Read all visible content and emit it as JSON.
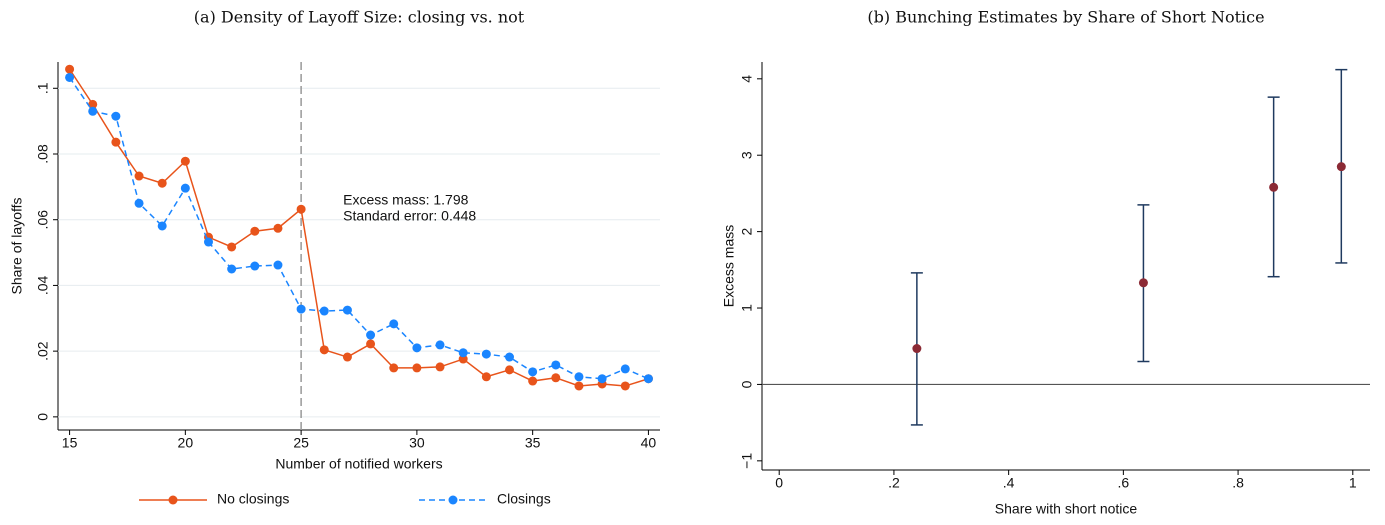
{
  "chart_data": [
    {
      "type": "line",
      "title": "(a) Density of Layoff Size: closing vs. not",
      "x_label": "Number of notified workers",
      "y_label": "Share of layoffs",
      "x": [
        15,
        16,
        17,
        18,
        19,
        20,
        21,
        22,
        23,
        24,
        25,
        26,
        27,
        28,
        29,
        30,
        31,
        32,
        33,
        34,
        35,
        36,
        37,
        38,
        39,
        40
      ],
      "series": [
        {
          "name": "No closings",
          "color": "#e8541b",
          "line_style": "solid",
          "values": [
            0.1058,
            0.0951,
            0.0836,
            0.0733,
            0.0711,
            0.0778,
            0.0547,
            0.0517,
            0.0565,
            0.0574,
            0.0632,
            0.0204,
            0.0182,
            0.0222,
            0.0149,
            0.0149,
            0.0152,
            0.0176,
            0.0122,
            0.0143,
            0.0109,
            0.0119,
            0.0094,
            0.01,
            0.0094,
            0.0116
          ]
        },
        {
          "name": "Closings",
          "color": "#1a85ff",
          "line_style": "dashed",
          "values": [
            0.1033,
            0.093,
            0.0915,
            0.065,
            0.0581,
            0.0696,
            0.0532,
            0.045,
            0.0459,
            0.0462,
            0.0328,
            0.0322,
            0.0325,
            0.0249,
            0.0283,
            0.021,
            0.0219,
            0.0195,
            0.0191,
            0.0182,
            0.0137,
            0.0158,
            0.0122,
            0.0116,
            0.0146,
            0.0116
          ]
        }
      ],
      "vline": 25,
      "annotation": [
        "Excess mass: 1.798",
        "Standard error: 0.448"
      ],
      "xlim": [
        14.5,
        40.5
      ],
      "xticks": [
        15,
        20,
        25,
        30,
        35,
        40
      ],
      "ylim": [
        -0.004,
        0.108
      ],
      "yticks": [
        0,
        {
          "value": 0.02,
          "label": ".02"
        },
        {
          "value": 0.04,
          "label": ".04"
        },
        {
          "value": 0.06,
          "label": ".06"
        },
        {
          "value": 0.08,
          "label": ".08"
        },
        {
          "value": 0.1,
          "label": ".1"
        }
      ],
      "grid": true,
      "legend": "bottom"
    },
    {
      "type": "errorbar",
      "title": "(b) Bunching Estimates by Share of Short Notice",
      "x_label": "Share with short notice",
      "y_label": "Excess mass",
      "x": [
        0.24,
        0.635,
        0.862,
        0.98
      ],
      "values": [
        0.47,
        1.33,
        2.58,
        2.85
      ],
      "lower": [
        -0.53,
        0.3,
        1.41,
        1.59
      ],
      "upper": [
        1.46,
        2.35,
        3.76,
        4.12
      ],
      "color": "#8b2a35",
      "bar_color": "#1f3a5f",
      "hline": 0,
      "xlim": [
        -0.03,
        1.03
      ],
      "xticks": [
        0,
        {
          "value": 0.2,
          "label": ".2"
        },
        {
          "value": 0.4,
          "label": ".4"
        },
        {
          "value": 0.6,
          "label": ".6"
        },
        {
          "value": 0.8,
          "label": ".8"
        },
        1
      ],
      "ylim": [
        -1.12,
        4.22
      ],
      "yticks": [
        {
          "value": -1,
          "label": "−1"
        },
        0,
        1,
        2,
        3,
        4
      ],
      "grid": false
    }
  ]
}
